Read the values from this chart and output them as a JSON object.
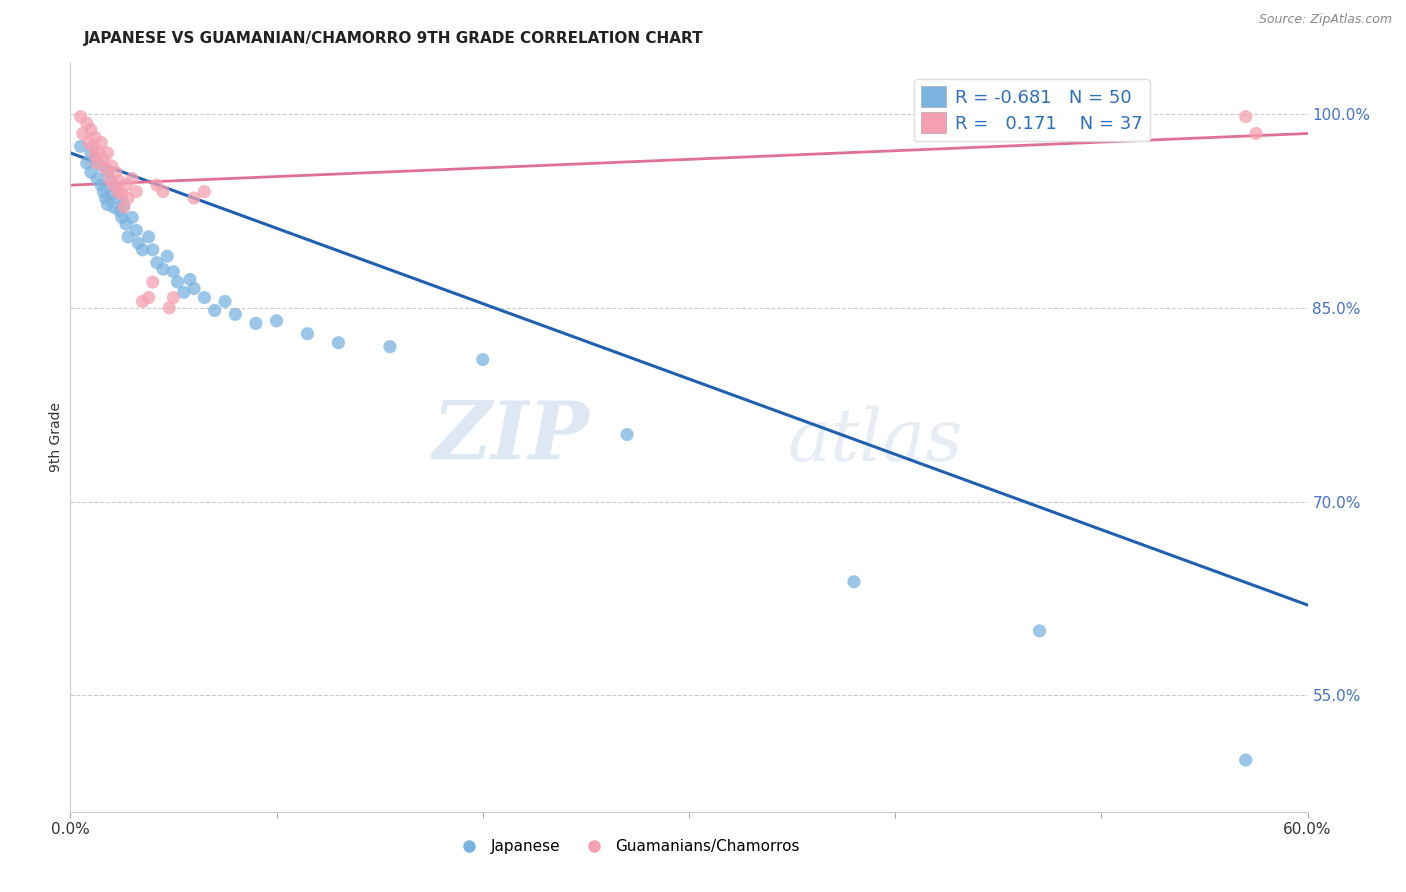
{
  "title": "JAPANESE VS GUAMANIAN/CHAMORRO 9TH GRADE CORRELATION CHART",
  "source_text": "Source: ZipAtlas.com",
  "ylabel": "9th Grade",
  "xlim": [
    0.0,
    0.6
  ],
  "ylim": [
    0.46,
    1.04
  ],
  "x_ticks": [
    0.0,
    0.1,
    0.2,
    0.3,
    0.4,
    0.5,
    0.6
  ],
  "x_tick_labels": [
    "0.0%",
    "",
    "",
    "",
    "",
    "",
    "60.0%"
  ],
  "y_ticks": [
    0.55,
    0.7,
    0.85,
    1.0
  ],
  "y_tick_labels": [
    "55.0%",
    "70.0%",
    "85.0%",
    "100.0%"
  ],
  "legend_r_japanese": "-0.681",
  "legend_n_japanese": "50",
  "legend_r_guamanian": "0.171",
  "legend_n_guamanian": "37",
  "japanese_color": "#7ab3e0",
  "guamanian_color": "#f4a0b0",
  "japanese_line_color": "#2060b0",
  "guamanian_line_color": "#e07090",
  "watermark_zip": "ZIP",
  "watermark_atlas": "atlas",
  "background_color": "#ffffff",
  "japanese_points": [
    [
      0.005,
      0.975
    ],
    [
      0.008,
      0.962
    ],
    [
      0.01,
      0.97
    ],
    [
      0.01,
      0.955
    ],
    [
      0.012,
      0.965
    ],
    [
      0.013,
      0.95
    ],
    [
      0.015,
      0.96
    ],
    [
      0.015,
      0.945
    ],
    [
      0.016,
      0.94
    ],
    [
      0.017,
      0.935
    ],
    [
      0.018,
      0.93
    ],
    [
      0.018,
      0.955
    ],
    [
      0.02,
      0.948
    ],
    [
      0.02,
      0.938
    ],
    [
      0.021,
      0.928
    ],
    [
      0.022,
      0.943
    ],
    [
      0.023,
      0.935
    ],
    [
      0.024,
      0.925
    ],
    [
      0.025,
      0.92
    ],
    [
      0.026,
      0.93
    ],
    [
      0.027,
      0.915
    ],
    [
      0.028,
      0.905
    ],
    [
      0.03,
      0.92
    ],
    [
      0.032,
      0.91
    ],
    [
      0.033,
      0.9
    ],
    [
      0.035,
      0.895
    ],
    [
      0.038,
      0.905
    ],
    [
      0.04,
      0.895
    ],
    [
      0.042,
      0.885
    ],
    [
      0.045,
      0.88
    ],
    [
      0.047,
      0.89
    ],
    [
      0.05,
      0.878
    ],
    [
      0.052,
      0.87
    ],
    [
      0.055,
      0.862
    ],
    [
      0.058,
      0.872
    ],
    [
      0.06,
      0.865
    ],
    [
      0.065,
      0.858
    ],
    [
      0.07,
      0.848
    ],
    [
      0.075,
      0.855
    ],
    [
      0.08,
      0.845
    ],
    [
      0.09,
      0.838
    ],
    [
      0.1,
      0.84
    ],
    [
      0.115,
      0.83
    ],
    [
      0.13,
      0.823
    ],
    [
      0.155,
      0.82
    ],
    [
      0.2,
      0.81
    ],
    [
      0.27,
      0.752
    ],
    [
      0.38,
      0.638
    ],
    [
      0.47,
      0.6
    ],
    [
      0.57,
      0.5
    ]
  ],
  "guamanian_points": [
    [
      0.005,
      0.998
    ],
    [
      0.006,
      0.985
    ],
    [
      0.008,
      0.993
    ],
    [
      0.009,
      0.978
    ],
    [
      0.01,
      0.988
    ],
    [
      0.011,
      0.975
    ],
    [
      0.012,
      0.982
    ],
    [
      0.012,
      0.968
    ],
    [
      0.013,
      0.962
    ],
    [
      0.014,
      0.97
    ],
    [
      0.015,
      0.978
    ],
    [
      0.016,
      0.965
    ],
    [
      0.017,
      0.958
    ],
    [
      0.018,
      0.97
    ],
    [
      0.019,
      0.95
    ],
    [
      0.02,
      0.96
    ],
    [
      0.021,
      0.945
    ],
    [
      0.022,
      0.955
    ],
    [
      0.023,
      0.94
    ],
    [
      0.024,
      0.948
    ],
    [
      0.025,
      0.938
    ],
    [
      0.026,
      0.928
    ],
    [
      0.027,
      0.945
    ],
    [
      0.028,
      0.935
    ],
    [
      0.03,
      0.95
    ],
    [
      0.032,
      0.94
    ],
    [
      0.035,
      0.855
    ],
    [
      0.038,
      0.858
    ],
    [
      0.04,
      0.87
    ],
    [
      0.042,
      0.945
    ],
    [
      0.045,
      0.94
    ],
    [
      0.048,
      0.85
    ],
    [
      0.05,
      0.858
    ],
    [
      0.06,
      0.935
    ],
    [
      0.065,
      0.94
    ],
    [
      0.57,
      0.998
    ],
    [
      0.575,
      0.985
    ]
  ]
}
